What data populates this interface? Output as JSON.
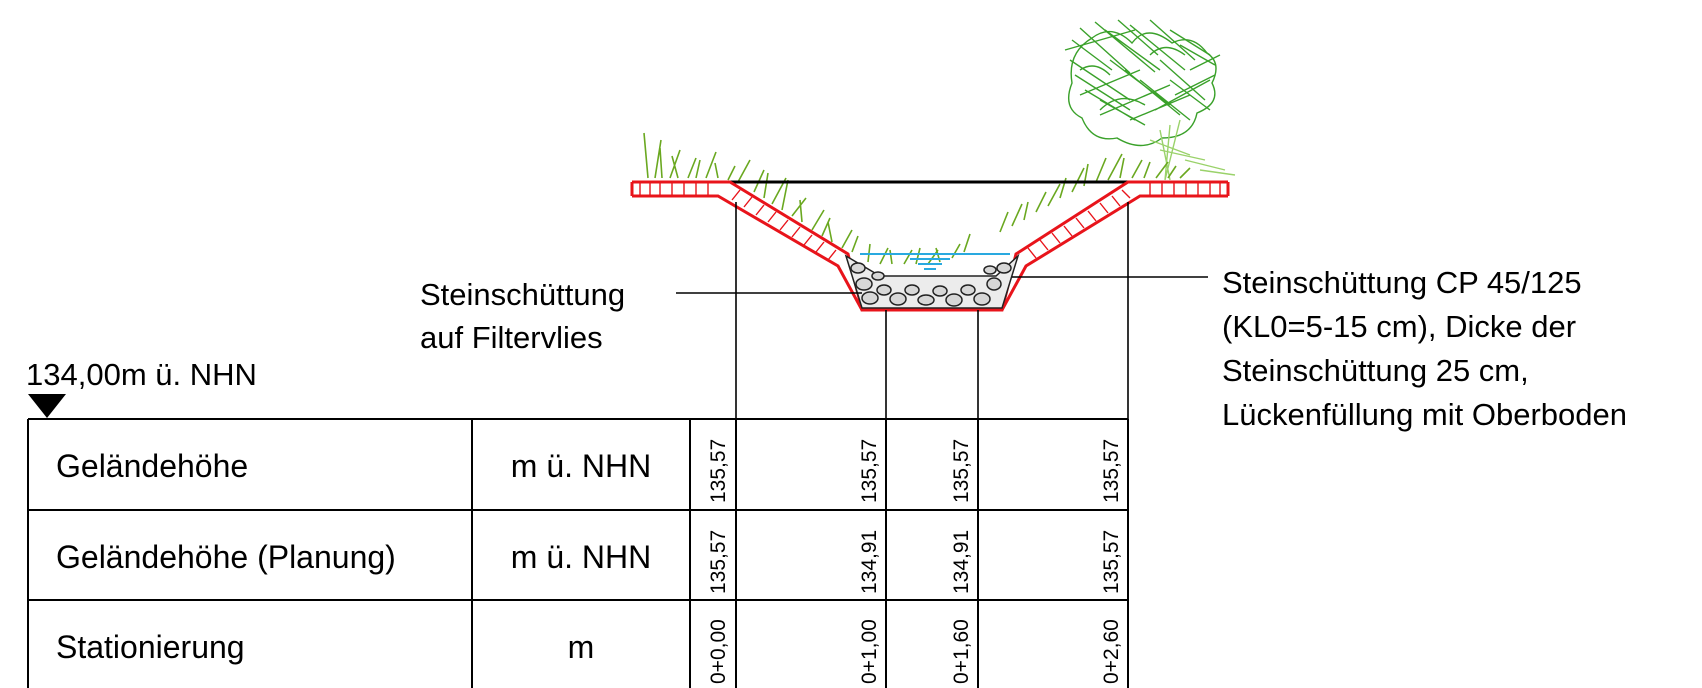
{
  "reference_level": {
    "label": "134,00m ü. NHN"
  },
  "annotations": {
    "left": {
      "line1": "Steinschüttung",
      "line2": "auf Filtervlies"
    },
    "right": {
      "line1": "Steinschüttung CP 45/125",
      "line2": "(KL0=5-15 cm), Dicke der",
      "line3": "Steinschüttung 25 cm,",
      "line4": "Lückenfüllung mit Oberboden"
    }
  },
  "table": {
    "rows": [
      {
        "label": "Geländehöhe",
        "unit": "m ü. NHN",
        "values": [
          "135,57",
          "135,57",
          "135,57",
          "135,57"
        ]
      },
      {
        "label": "Geländehöhe (Planung)",
        "unit": "m ü. NHN",
        "values": [
          "135,57",
          "134,91",
          "134,91",
          "135,57"
        ]
      },
      {
        "label": "Stationierung",
        "unit": "m",
        "values": [
          "0+0,00",
          "0+1,00",
          "0+1,60",
          "0+2,60"
        ]
      }
    ]
  },
  "colors": {
    "liner": "#e8141b",
    "water": "#29a9e0",
    "grass": "#6aa820",
    "tree": "#3aa12a",
    "lines": "#000000"
  }
}
